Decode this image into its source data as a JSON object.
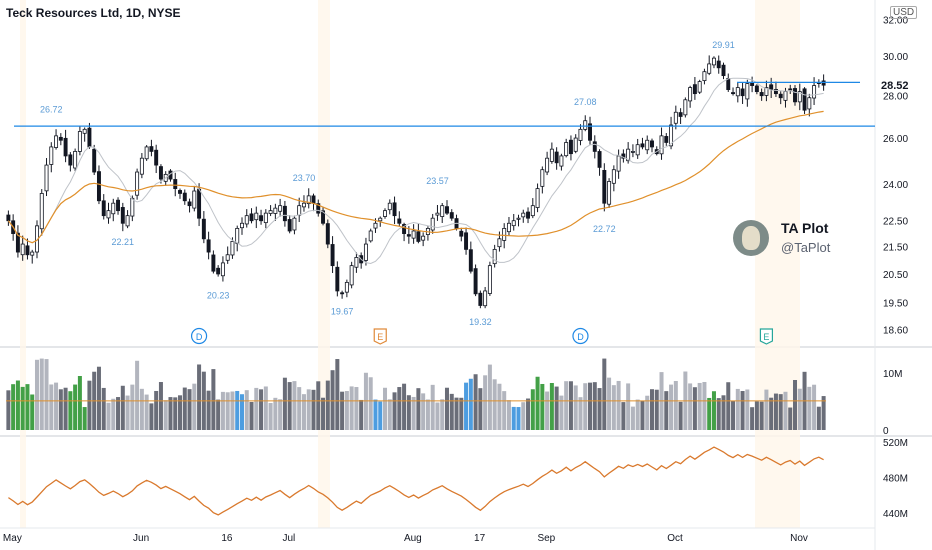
{
  "header": {
    "title": "Teck Resources Ltd, 1D, NYSE",
    "currency": "USD"
  },
  "brand": {
    "name": "TA Plot",
    "handle": "@TaPlot",
    "avatar_icon": "dog-avatar-icon"
  },
  "colors": {
    "up": "#ffffff",
    "down": "#131722",
    "ma_fast": "#bfc3c9",
    "ma_slow": "#e0902b",
    "hline": "#1e88e5",
    "peak_label": "#5b9bd5",
    "volume_up": "#b2b5be",
    "volume_down": "#6a6d78",
    "volume_green": "#43a047",
    "volume_blue": "#4d9de0",
    "obv": "#d9792d",
    "event_dividend": "#1e88e5",
    "event_earnings": "#e08a3a",
    "event_earnings2": "#26a69a"
  },
  "chart_data": [
    {
      "type": "candlestick",
      "title": "Teck Resources Ltd, 1D, NYSE",
      "x_labels": [
        "May",
        "Jun",
        "16",
        "Jul",
        "Aug",
        "17",
        "Sep",
        "Oct",
        "Nov"
      ],
      "y_ticks": [
        "32.00",
        "30.00",
        "28.00",
        "26.00",
        "24.00",
        "22.50",
        "21.50",
        "20.50",
        "19.50",
        "18.60"
      ],
      "ylim": [
        18.2,
        32.3
      ],
      "scale": "log",
      "last_price": "28.52",
      "horizontal_levels": [
        26.55,
        28.66
      ],
      "annotations": [
        {
          "text": "26.72",
          "index": 9,
          "value": 26.72,
          "pos": "above"
        },
        {
          "text": "22.21",
          "index": 24,
          "value": 22.21,
          "pos": "below"
        },
        {
          "text": "20.23",
          "index": 44,
          "value": 20.23,
          "pos": "below"
        },
        {
          "text": "23.70",
          "index": 62,
          "value": 23.7,
          "pos": "above"
        },
        {
          "text": "19.67",
          "index": 70,
          "value": 19.67,
          "pos": "below"
        },
        {
          "text": "23.57",
          "index": 90,
          "value": 23.57,
          "pos": "above"
        },
        {
          "text": "19.32",
          "index": 99,
          "value": 19.32,
          "pos": "below"
        },
        {
          "text": "27.08",
          "index": 121,
          "value": 27.08,
          "pos": "above"
        },
        {
          "text": "22.72",
          "index": 125,
          "value": 22.72,
          "pos": "below"
        },
        {
          "text": "29.91",
          "index": 150,
          "value": 29.91,
          "pos": "above"
        }
      ],
      "events": [
        {
          "text": "D",
          "index": 40,
          "kind": "dividend"
        },
        {
          "text": "E",
          "index": 78,
          "kind": "earnings"
        },
        {
          "text": "D",
          "index": 120,
          "kind": "dividend"
        },
        {
          "text": "E",
          "index": 159,
          "kind": "earnings2"
        }
      ],
      "close": [
        22.5,
        22.0,
        21.3,
        21.6,
        21.2,
        21.3,
        22.3,
        23.6,
        24.8,
        25.6,
        26.1,
        25.9,
        25.2,
        24.8,
        25.4,
        26.3,
        26.4,
        25.6,
        24.5,
        23.3,
        22.7,
        22.9,
        23.2,
        22.9,
        22.4,
        22.7,
        23.4,
        24.5,
        25.1,
        25.6,
        25.4,
        24.8,
        24.2,
        24.4,
        24.2,
        23.8,
        23.6,
        23.3,
        23.1,
        23.7,
        22.6,
        21.8,
        21.3,
        20.6,
        20.5,
        20.9,
        21.2,
        21.7,
        22.2,
        22.4,
        22.7,
        22.5,
        22.8,
        22.5,
        22.8,
        22.9,
        23.0,
        23.1,
        22.5,
        22.1,
        22.6,
        23.1,
        23.2,
        23.5,
        23.2,
        22.8,
        22.4,
        21.6,
        20.8,
        19.9,
        19.8,
        20.2,
        20.8,
        21.1,
        20.9,
        21.6,
        22.1,
        22.4,
        22.6,
        22.9,
        23.2,
        22.7,
        22.4,
        22.0,
        21.9,
        22.1,
        21.7,
        21.9,
        22.2,
        22.6,
        22.8,
        23.1,
        22.8,
        22.6,
        22.2,
        21.9,
        21.4,
        20.6,
        19.8,
        19.4,
        19.9,
        20.8,
        21.4,
        21.8,
        22.2,
        22.4,
        22.5,
        22.6,
        22.8,
        22.6,
        23.1,
        23.8,
        24.6,
        25.1,
        25.5,
        24.9,
        25.2,
        25.8,
        25.3,
        26.0,
        26.4,
        26.8,
        25.9,
        25.4,
        24.7,
        23.2,
        24.1,
        24.6,
        25.2,
        25.1,
        25.5,
        25.4,
        25.7,
        25.6,
        25.9,
        25.6,
        25.3,
        26.1,
        25.8,
        26.6,
        27.2,
        27.0,
        27.8,
        28.4,
        28.1,
        28.7,
        29.2,
        29.6,
        29.9,
        29.4,
        29.0,
        28.3,
        28.1,
        28.4,
        28.0,
        28.6,
        28.5,
        28.2,
        28.0,
        28.4,
        28.3,
        28.1,
        27.9,
        28.2,
        28.3,
        27.7,
        28.2,
        27.3,
        27.9,
        28.5,
        28.6,
        28.52
      ],
      "volume_ylim": [
        0,
        14
      ],
      "volume_ticks": [
        "10M",
        "0"
      ],
      "obv_ticks": [
        "520M",
        "480M",
        "440M"
      ],
      "obv_ylim": [
        430,
        522
      ]
    }
  ]
}
